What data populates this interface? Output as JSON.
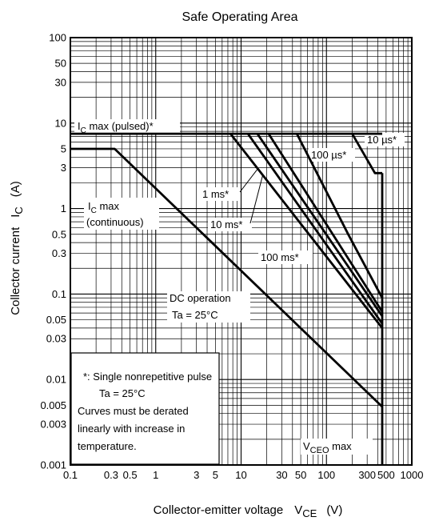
{
  "chart_data": {
    "type": "line",
    "title": "Safe Operating Area",
    "xlabel": {
      "text": "Collector-emitter voltage",
      "symbol": "V",
      "sub": "CE",
      "unit": "(V)"
    },
    "ylabel": {
      "text": "Collector current",
      "symbol": "I",
      "sub": "C",
      "unit": "(A)"
    },
    "x_scale": "log",
    "y_scale": "log",
    "xlim": [
      0.1,
      1000
    ],
    "ylim": [
      0.001,
      100
    ],
    "x_ticks": [
      {
        "v": 0.1,
        "label": "0.1"
      },
      {
        "v": 0.3,
        "label": "0.3"
      },
      {
        "v": 0.5,
        "label": "0.5"
      },
      {
        "v": 1,
        "label": "1"
      },
      {
        "v": 3,
        "label": "3"
      },
      {
        "v": 5,
        "label": "5"
      },
      {
        "v": 10,
        "label": "10"
      },
      {
        "v": 30,
        "label": "30"
      },
      {
        "v": 50,
        "label": "50"
      },
      {
        "v": 100,
        "label": "100"
      },
      {
        "v": 300,
        "label": "300"
      },
      {
        "v": 500,
        "label": "500"
      },
      {
        "v": 1000,
        "label": "1000"
      }
    ],
    "y_ticks": [
      {
        "v": 100,
        "label": "100"
      },
      {
        "v": 50,
        "label": "50"
      },
      {
        "v": 30,
        "label": "30"
      },
      {
        "v": 10,
        "label": "10"
      },
      {
        "v": 5,
        "label": "5"
      },
      {
        "v": 3,
        "label": "3"
      },
      {
        "v": 1,
        "label": "1"
      },
      {
        "v": 0.5,
        "label": "0.5"
      },
      {
        "v": 0.3,
        "label": "0.3"
      },
      {
        "v": 0.1,
        "label": "0.1"
      },
      {
        "v": 0.05,
        "label": "0.05"
      },
      {
        "v": 0.03,
        "label": "0.03"
      },
      {
        "v": 0.01,
        "label": "0.01"
      },
      {
        "v": 0.005,
        "label": "0.005"
      },
      {
        "v": 0.003,
        "label": "0.003"
      },
      {
        "v": 0.001,
        "label": "0.001"
      }
    ],
    "grid": true,
    "series": [
      {
        "id": "pulsed-max",
        "points": [
          [
            0.1,
            7.5
          ],
          [
            450,
            7.5
          ]
        ]
      },
      {
        "id": "dc-operation",
        "points": [
          [
            0.1,
            5
          ],
          [
            0.33,
            5
          ],
          [
            450,
            0.0048
          ]
        ]
      },
      {
        "id": "pulse-100ms",
        "points": [
          [
            7.5,
            7.5
          ],
          [
            450,
            0.04
          ]
        ]
      },
      {
        "id": "pulse-10ms",
        "points": [
          [
            12,
            7.5
          ],
          [
            450,
            0.045
          ]
        ]
      },
      {
        "id": "pulse-1ms",
        "points": [
          [
            15.5,
            7.5
          ],
          [
            450,
            0.055
          ]
        ]
      },
      {
        "id": "pulse-100us",
        "points": [
          [
            21,
            7.5
          ],
          [
            450,
            0.062
          ]
        ]
      },
      {
        "id": "pulse-10us",
        "points": [
          [
            45,
            7.5
          ],
          [
            180,
            0.5
          ],
          [
            450,
            0.09
          ]
        ]
      },
      {
        "id": "pulse-10us-upper",
        "points": [
          [
            200,
            7.5
          ],
          [
            370,
            2.6
          ],
          [
            450,
            2.6
          ]
        ]
      },
      {
        "id": "vceo-max",
        "points": [
          [
            450,
            2.6
          ],
          [
            450,
            0.001
          ]
        ]
      }
    ],
    "labels": {
      "ic_pulsed": {
        "sym": "I",
        "sub": "C",
        "rest": " max (pulsed)*"
      },
      "ic_cont_line1": {
        "sym": "I",
        "sub": "C",
        "rest": " max"
      },
      "ic_cont_line2": "(continuous)",
      "ms1": "1 ms*",
      "ms10": "10 ms*",
      "ms100": "100 ms*",
      "us100": "100 µs*",
      "us10": "10 µs*",
      "dc1": "DC operation",
      "dc2": "Ta = 25°C",
      "vceo": {
        "sym": "V",
        "sub": "CEO",
        "rest": " max"
      }
    },
    "notes": [
      "*: Single nonrepetitive pulse",
      "Ta = 25°C",
      "Curves must be derated",
      "linearly with increase in",
      "temperature."
    ]
  }
}
